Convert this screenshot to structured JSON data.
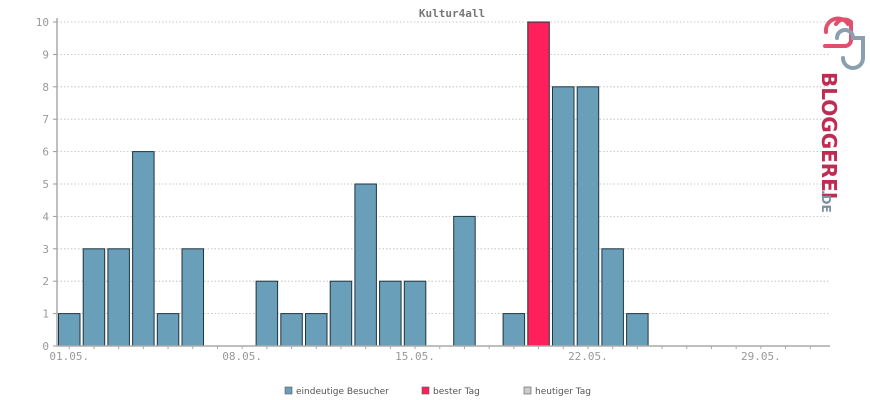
{
  "chart_data": {
    "type": "bar",
    "title": "Kultur4all",
    "x": [
      1,
      2,
      3,
      4,
      5,
      6,
      7,
      8,
      9,
      10,
      11,
      12,
      13,
      14,
      15,
      16,
      17,
      18,
      19,
      20,
      21,
      22,
      23,
      24,
      25,
      26,
      27,
      28,
      29,
      30,
      31
    ],
    "values": [
      1,
      3,
      3,
      6,
      1,
      3,
      0,
      0,
      2,
      1,
      1,
      2,
      5,
      2,
      2,
      0,
      4,
      0,
      1,
      10,
      8,
      8,
      3,
      1,
      0,
      0,
      0,
      0,
      0,
      0,
      0
    ],
    "best_index": 19,
    "xticks": [
      {
        "day": 1,
        "label": "01.05."
      },
      {
        "day": 8,
        "label": "08.05."
      },
      {
        "day": 15,
        "label": "15.05."
      },
      {
        "day": 22,
        "label": "22.05."
      },
      {
        "day": 29,
        "label": "29.05."
      }
    ],
    "yticks": [
      0,
      1,
      2,
      3,
      4,
      5,
      6,
      7,
      8,
      9,
      10
    ],
    "ylim": [
      0,
      10
    ],
    "grid": true,
    "legend_position": "bottom-center",
    "legend": [
      {
        "label": "eindeutige Besucher",
        "color": "#6a9fba"
      },
      {
        "label": "bester Tag",
        "color": "#ff1f5a"
      },
      {
        "label": "heutiger Tag",
        "color": "#cccccc"
      }
    ],
    "colors": {
      "bar": "#6a9fba",
      "best": "#ff1f5a",
      "today": "#cccccc"
    }
  },
  "brand": {
    "name": "BLOGGEREI",
    "suffix": ".DE"
  }
}
